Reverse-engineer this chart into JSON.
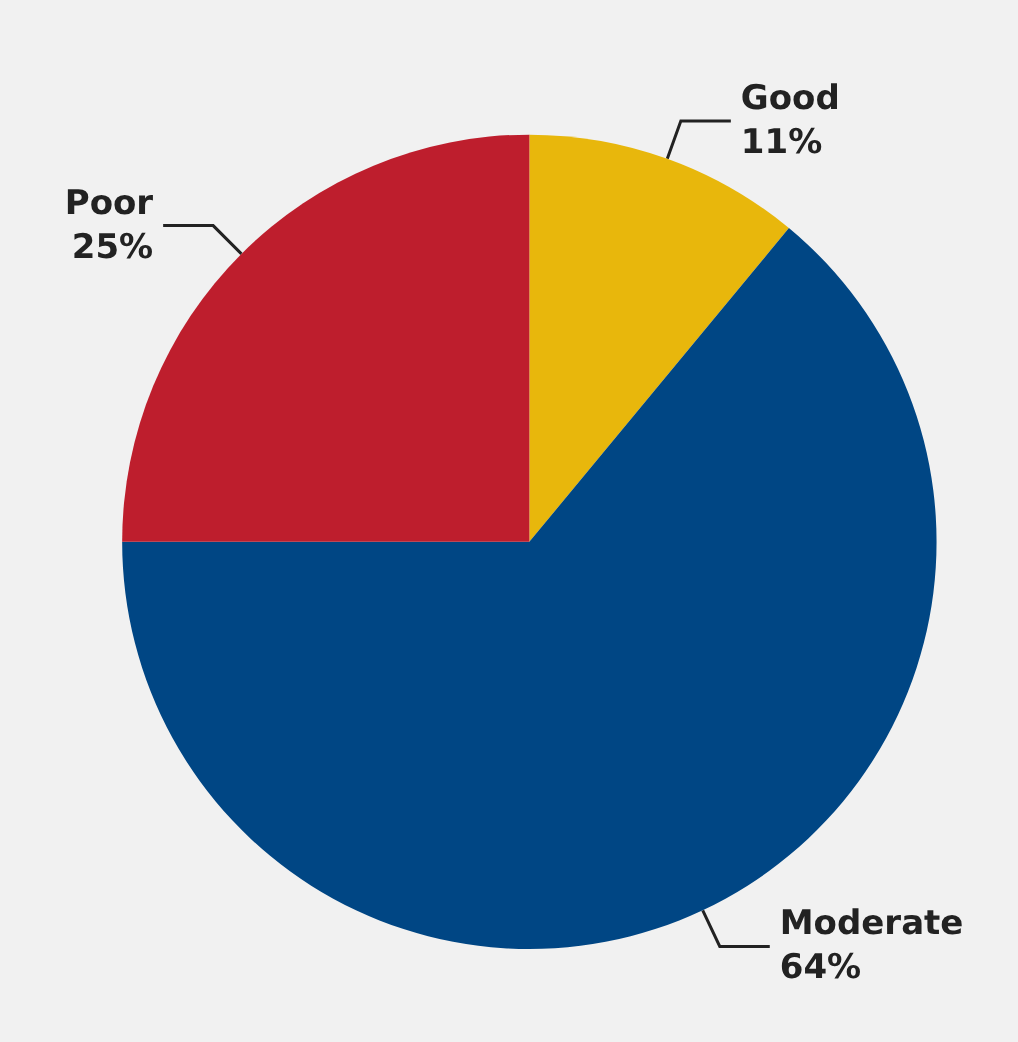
{
  "chart_data": {
    "type": "pie",
    "categories": [
      "Good",
      "Moderate",
      "Poor"
    ],
    "values": [
      11,
      64,
      25
    ],
    "colors": [
      "#e8b70c",
      "#004684",
      "#be1e2d"
    ],
    "value_labels": [
      "11%",
      "64%",
      "25%"
    ],
    "legend": false
  }
}
